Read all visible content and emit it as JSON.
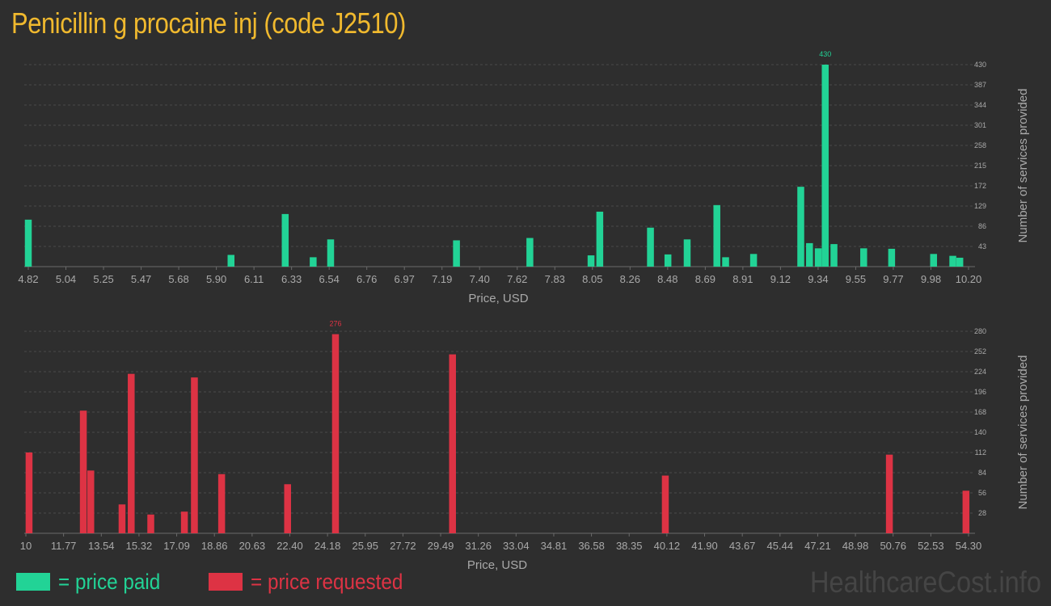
{
  "title": "Penicillin g procaine inj (code J2510)",
  "watermark": "HealthcareCost.info",
  "colors": {
    "paid": "#22d396",
    "requested": "#dd3344",
    "title": "#f0b92e",
    "grid": "#4a4a4a",
    "text": "#a9a9a9"
  },
  "legend": {
    "paid": "= price paid",
    "requested": "= price requested"
  },
  "chart_data": [
    {
      "type": "bar",
      "name": "price paid",
      "xlabel": "Price, USD",
      "ylabel": "Number of services provided",
      "xlim": [
        4.82,
        10.2
      ],
      "ylim": [
        0,
        430
      ],
      "x_ticks": [
        "4.82",
        "5.04",
        "5.25",
        "5.47",
        "5.68",
        "5.90",
        "6.11",
        "6.33",
        "6.54",
        "6.76",
        "6.97",
        "7.19",
        "7.40",
        "7.62",
        "7.83",
        "8.05",
        "8.26",
        "8.48",
        "8.69",
        "8.91",
        "9.12",
        "9.34",
        "9.55",
        "9.77",
        "9.98",
        "10.20"
      ],
      "y_ticks": [
        43,
        86,
        129,
        172,
        215,
        258,
        301,
        344,
        387,
        430
      ],
      "max_label": "430",
      "bars": [
        {
          "x": 4.82,
          "y": 100
        },
        {
          "x": 5.98,
          "y": 25
        },
        {
          "x": 6.29,
          "y": 112
        },
        {
          "x": 6.45,
          "y": 20
        },
        {
          "x": 6.55,
          "y": 58
        },
        {
          "x": 7.27,
          "y": 56
        },
        {
          "x": 7.69,
          "y": 61
        },
        {
          "x": 8.04,
          "y": 24
        },
        {
          "x": 8.09,
          "y": 117
        },
        {
          "x": 8.38,
          "y": 83
        },
        {
          "x": 8.48,
          "y": 26
        },
        {
          "x": 8.59,
          "y": 58
        },
        {
          "x": 8.76,
          "y": 131
        },
        {
          "x": 8.81,
          "y": 20
        },
        {
          "x": 8.97,
          "y": 27
        },
        {
          "x": 9.24,
          "y": 170
        },
        {
          "x": 9.29,
          "y": 50
        },
        {
          "x": 9.34,
          "y": 39
        },
        {
          "x": 9.38,
          "y": 430
        },
        {
          "x": 9.43,
          "y": 48
        },
        {
          "x": 9.6,
          "y": 39
        },
        {
          "x": 9.76,
          "y": 38
        },
        {
          "x": 10.0,
          "y": 27
        },
        {
          "x": 10.11,
          "y": 23
        },
        {
          "x": 10.15,
          "y": 19
        }
      ]
    },
    {
      "type": "bar",
      "name": "price requested",
      "xlabel": "Price, USD",
      "ylabel": "Number of services provided",
      "xlim": [
        10,
        54.3
      ],
      "ylim": [
        0,
        280
      ],
      "x_ticks": [
        "10",
        "11.77",
        "13.54",
        "15.32",
        "17.09",
        "18.86",
        "20.63",
        "22.40",
        "24.18",
        "25.95",
        "27.72",
        "29.49",
        "31.26",
        "33.04",
        "34.81",
        "36.58",
        "38.35",
        "40.12",
        "41.90",
        "43.67",
        "45.44",
        "47.21",
        "48.98",
        "50.76",
        "52.53",
        "54.30"
      ],
      "y_ticks": [
        28,
        56,
        84,
        112,
        140,
        168,
        196,
        224,
        252,
        280
      ],
      "max_label": "276",
      "bars": [
        {
          "x": 10.15,
          "y": 112
        },
        {
          "x": 12.7,
          "y": 170
        },
        {
          "x": 13.05,
          "y": 87
        },
        {
          "x": 14.52,
          "y": 40
        },
        {
          "x": 14.95,
          "y": 221
        },
        {
          "x": 15.87,
          "y": 26
        },
        {
          "x": 17.45,
          "y": 30
        },
        {
          "x": 17.92,
          "y": 216
        },
        {
          "x": 19.2,
          "y": 82
        },
        {
          "x": 22.3,
          "y": 68
        },
        {
          "x": 24.55,
          "y": 276
        },
        {
          "x": 30.05,
          "y": 248
        },
        {
          "x": 40.05,
          "y": 80
        },
        {
          "x": 50.58,
          "y": 109
        },
        {
          "x": 54.18,
          "y": 59
        }
      ]
    }
  ]
}
